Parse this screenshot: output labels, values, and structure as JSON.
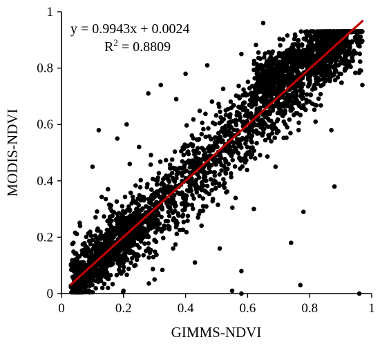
{
  "chart_data": {
    "type": "scatter",
    "xlabel": "GIMMS-NDVI",
    "ylabel": "MODIS-NDVI",
    "xlim": [
      0,
      1
    ],
    "ylim": [
      0,
      1
    ],
    "xticks": [
      "0",
      "0.2",
      "0.4",
      "0.6",
      "0.8",
      "1"
    ],
    "yticks": [
      "0",
      "0.2",
      "0.4",
      "0.6",
      "0.8",
      "1"
    ],
    "grid": false,
    "equation_label": "y = 0.9943x + 0.0024",
    "r2_label_prefix": "R",
    "r2_label_sup": "2",
    "r2_label_suffix": " = 0.8809",
    "fit": {
      "slope": 0.9943,
      "intercept": 0.0024,
      "x_range": [
        0.03,
        0.97
      ],
      "color": "#c00000"
    },
    "point_color": "#000000",
    "notable_points": [
      [
        0.65,
        0.96
      ],
      [
        0.97,
        0.74
      ],
      [
        0.77,
        0.03
      ],
      [
        0.58,
        0.0
      ],
      [
        0.96,
        0.0
      ],
      [
        0.28,
        0.71
      ],
      [
        0.32,
        0.74
      ],
      [
        0.12,
        0.58
      ],
      [
        0.37,
        0.69
      ],
      [
        0.47,
        0.81
      ],
      [
        0.4,
        0.78
      ],
      [
        0.88,
        0.38
      ],
      [
        0.74,
        0.18
      ],
      [
        0.78,
        0.29
      ],
      [
        0.55,
        0.01
      ],
      [
        0.58,
        0.08
      ],
      [
        0.15,
        0.02
      ],
      [
        0.2,
        0.01
      ],
      [
        0.1,
        0.45
      ],
      [
        0.15,
        0.37
      ],
      [
        0.06,
        0.24
      ],
      [
        0.18,
        0.55
      ],
      [
        0.21,
        0.6
      ],
      [
        0.25,
        0.52
      ],
      [
        0.22,
        0.46
      ],
      [
        0.69,
        0.45
      ],
      [
        0.87,
        0.58
      ],
      [
        0.58,
        0.85
      ],
      [
        0.63,
        0.8
      ],
      [
        0.84,
        0.74
      ],
      [
        0.51,
        0.16
      ],
      [
        0.36,
        0.16
      ],
      [
        0.43,
        0.11
      ],
      [
        0.3,
        0.05
      ],
      [
        0.62,
        0.3
      ]
    ],
    "clusters": [
      {
        "n": 1900,
        "x": [
          0.03,
          0.97
        ],
        "slope": 0.9943,
        "intercept": 0.0024,
        "sd": 0.075
      },
      {
        "n": 750,
        "x": [
          0.62,
          0.93
        ],
        "slope": 0.55,
        "intercept": 0.4,
        "sd": 0.045
      },
      {
        "n": 550,
        "x": [
          0.04,
          0.26
        ],
        "slope": 0.9943,
        "intercept": 0.0024,
        "sd": 0.035
      }
    ]
  }
}
